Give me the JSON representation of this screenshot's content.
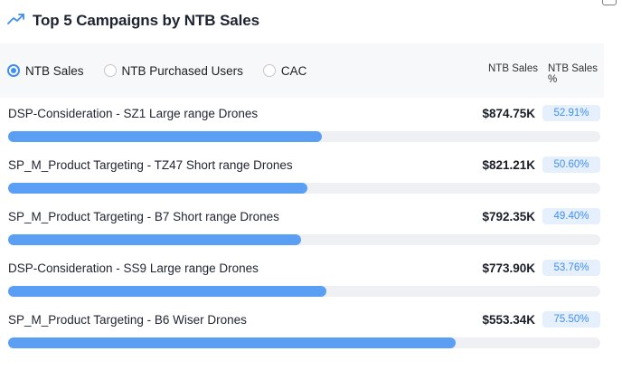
{
  "header": {
    "title": "Top 5 Campaigns by NTB Sales",
    "icon": "trend-up-icon",
    "accent": "#3f8ef0"
  },
  "controls": {
    "options": [
      {
        "label": "NTB Sales",
        "selected": true
      },
      {
        "label": "NTB Purchased Users",
        "selected": false
      },
      {
        "label": "CAC",
        "selected": false
      }
    ],
    "col_sales": "NTB Sales",
    "col_pct": "NTB Sales %"
  },
  "rows": [
    {
      "label": "DSP-Consideration - SZ1 Large range Drones",
      "value": "$874.75K",
      "pct": "52.91%",
      "fill": 0.53
    },
    {
      "label": "SP_M_Product Targeting - TZ47 Short range Drones",
      "value": "$821.21K",
      "pct": "50.60%",
      "fill": 0.505
    },
    {
      "label": "SP_M_Product Targeting - B7 Short range Drones",
      "value": "$792.35K",
      "pct": "49.40%",
      "fill": 0.495
    },
    {
      "label": "DSP-Consideration - SS9 Large range Drones",
      "value": "$773.90K",
      "pct": "53.76%",
      "fill": 0.538
    },
    {
      "label": "SP_M_Product Targeting - B6 Wiser Drones",
      "value": "$553.34K",
      "pct": "75.50%",
      "fill": 0.755
    }
  ]
}
